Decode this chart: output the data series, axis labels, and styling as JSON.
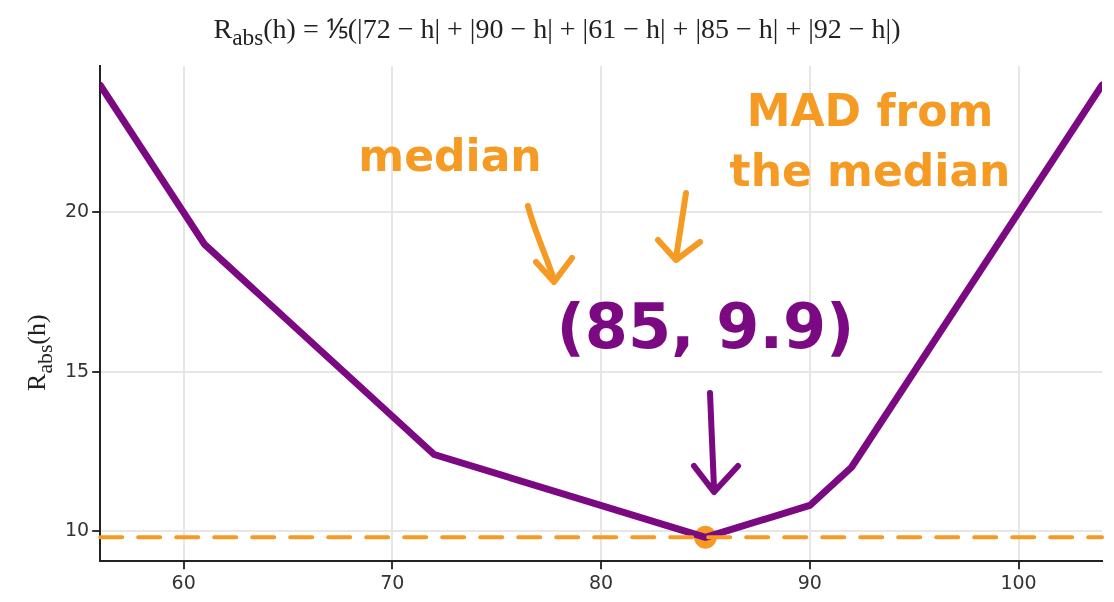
{
  "chart_data": {
    "type": "line",
    "title": "R$_{abs}$(h) = ⅕(|72 − h| + |90 − h| + |61 − h| + |85 − h| + |92 − h|)",
    "ylabel": "R$_{abs}$(h)",
    "x": [
      56,
      61,
      72,
      85,
      90,
      92,
      104
    ],
    "series": [
      {
        "color": "#7b0a82",
        "values": [
          24,
          19,
          12.4,
          9.8,
          10.8,
          12,
          24
        ]
      },
      {
        "type": "scatter",
        "marker": "circle",
        "color": "#f59a23",
        "x": [
          85
        ],
        "values": [
          9.8
        ]
      }
    ],
    "xlim": [
      56,
      104
    ],
    "ylim": [
      9.05,
      24.6
    ],
    "xticks": [
      60,
      70,
      80,
      90,
      100
    ],
    "yticks": [
      10,
      15,
      20
    ],
    "grid": true,
    "marker": "none",
    "line_style": "solid",
    "legend": false,
    "ref_lines": [
      {
        "axis": "y",
        "value": 9.8,
        "color": "#f59a23",
        "line_style": "dashed"
      }
    ],
    "annotations": [
      "median",
      "MAD from the median",
      {
        "text": "(85, 9.9)",
        "x": 85,
        "y": 9.8
      }
    ]
  }
}
